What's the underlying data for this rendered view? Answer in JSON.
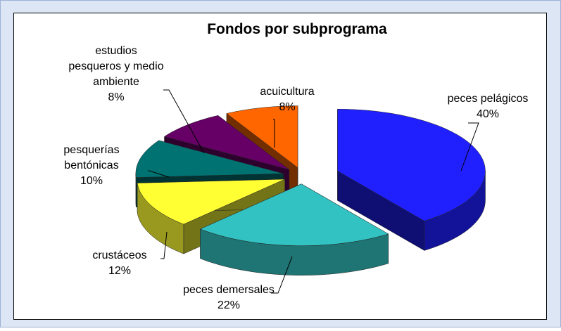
{
  "chart_data": {
    "type": "pie3d",
    "title": "Fondos por subprograma",
    "categories": [
      "peces pelágicos",
      "peces demersales",
      "crustáceos",
      "pesquerías bentónicas",
      "estudios pesqueros y medio ambiente",
      "acuicultura"
    ],
    "values": [
      40,
      22,
      12,
      10,
      8,
      8
    ],
    "value_labels": [
      "40%",
      "22%",
      "12%",
      "10%",
      "8%",
      "8%"
    ],
    "colors": [
      "#2020ff",
      "#33c2c2",
      "#ffff33",
      "#007272",
      "#660066",
      "#ff6600"
    ]
  }
}
